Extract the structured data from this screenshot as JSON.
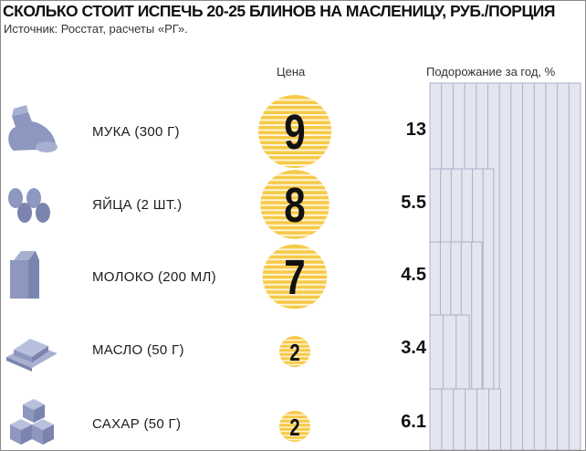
{
  "title": "СКОЛЬКО СТОИТ ИСПЕЧЬ 20-25 БЛИНОВ НА МАСЛЕНИЦУ, РУБ./ПОРЦИЯ",
  "source": "Источник: Росстат, расчеты «РГ».",
  "columns": {
    "price": "Цена",
    "increase": "Подорожание за год, %"
  },
  "colors": {
    "coin": "#f7c948",
    "bar": "#e4e6ef",
    "bar_line": "#aab0c8",
    "icon": "#8d97bf"
  },
  "chart_data": {
    "type": "bar",
    "title": "СКОЛЬКО СТОИТ ИСПЕЧЬ 20-25 БЛИНОВ НА МАСЛЕНИЦУ, РУБ./ПОРЦИЯ",
    "categories": [
      "МУКА (300 Г)",
      "ЯЙЦА (2 ШТ.)",
      "МОЛОКО (200 МЛ)",
      "МАСЛО (50 Г)",
      "САХАР (50 Г)"
    ],
    "icons": [
      "flour-bag-icon",
      "eggs-icon",
      "milk-carton-icon",
      "butter-icon",
      "sugar-cubes-icon"
    ],
    "series": [
      {
        "name": "Цена",
        "values": [
          9,
          8,
          7,
          2,
          2
        ]
      },
      {
        "name": "Подорожание за год, %",
        "values": [
          13,
          5.5,
          4.5,
          3.4,
          6.1
        ]
      }
    ],
    "price_labels": [
      "9",
      "8",
      "7",
      "2",
      "2"
    ],
    "increase_labels": [
      "13",
      "5.5",
      "4.5",
      "3.4",
      "6.1"
    ],
    "increase_max": 13
  }
}
